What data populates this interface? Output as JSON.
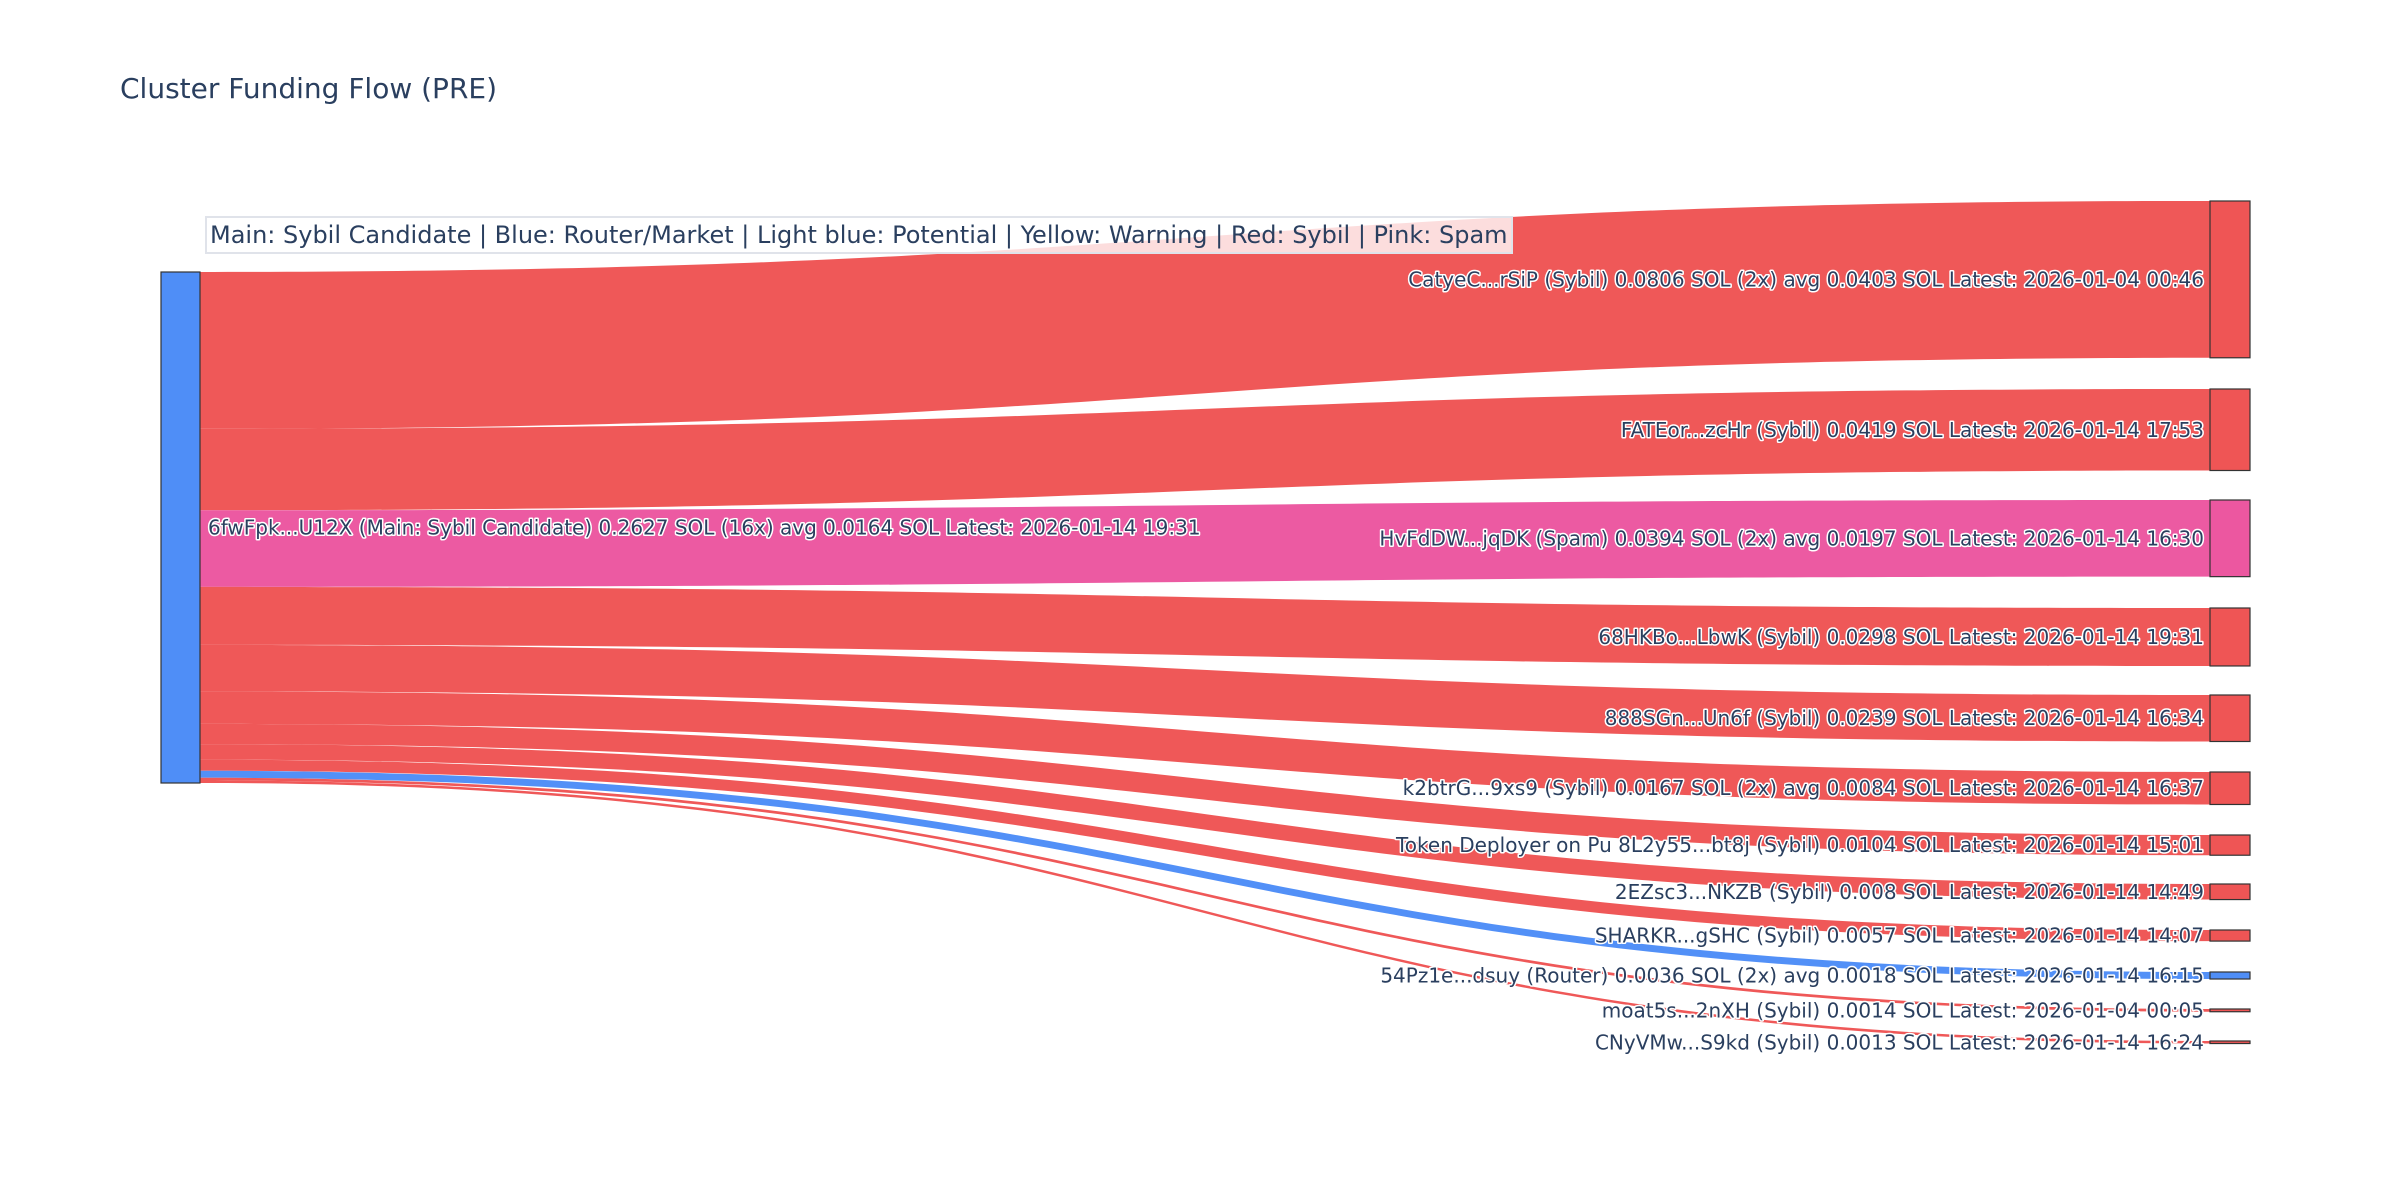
{
  "title": "Cluster Funding Flow (PRE)",
  "legend_note": "Main: Sybil Candidate  |  Blue: Router/Market | Light blue: Potential | Yellow: Warning | Red: Sybil | Pink: Spam",
  "colors": {
    "sybil": "#ef5555",
    "spam": "#ec57a0",
    "router": "#4f8ef7",
    "main": "#4f8ef7"
  },
  "chart_data": {
    "type": "sankey",
    "title": "Cluster Funding Flow (PRE)",
    "source": {
      "label": "6fwFpk...U12X (Main: Sybil Candidate) 0.2627 SOL (16x) avg 0.0164 SOL Latest: 2026-01-14 19:31",
      "value": 0.2627,
      "category": "main"
    },
    "targets": [
      {
        "label": "CatyeC...rSiP (Sybil) 0.0806 SOL (2x) avg 0.0403 SOL Latest: 2026-01-04 00:46",
        "value": 0.0806,
        "category": "sybil"
      },
      {
        "label": "FATEor...zcHr (Sybil) 0.0419 SOL Latest: 2026-01-14 17:53",
        "value": 0.0419,
        "category": "sybil"
      },
      {
        "label": "HvFdDW...jqDK (Spam) 0.0394 SOL (2x) avg 0.0197 SOL Latest: 2026-01-14 16:30",
        "value": 0.0394,
        "category": "spam"
      },
      {
        "label": "68HKBo...LbwK (Sybil) 0.0298 SOL Latest: 2026-01-14 19:31",
        "value": 0.0298,
        "category": "sybil"
      },
      {
        "label": "888SGn...Un6f (Sybil) 0.0239 SOL Latest: 2026-01-14 16:34",
        "value": 0.0239,
        "category": "sybil"
      },
      {
        "label": "k2btrG...9xs9 (Sybil) 0.0167 SOL (2x) avg 0.0084 SOL Latest: 2026-01-14 16:37",
        "value": 0.0167,
        "category": "sybil"
      },
      {
        "label": "Token Deployer on Pu 8L2y55...bt8j (Sybil) 0.0104 SOL Latest: 2026-01-14 15:01",
        "value": 0.0104,
        "category": "sybil"
      },
      {
        "label": "2EZsc3...NKZB (Sybil) 0.008 SOL Latest: 2026-01-14 14:49",
        "value": 0.008,
        "category": "sybil"
      },
      {
        "label": "SHARKR...gSHC (Sybil) 0.0057 SOL Latest: 2026-01-14 14:07",
        "value": 0.0057,
        "category": "sybil"
      },
      {
        "label": "54Pz1e...dsuy (Router) 0.0036 SOL (2x) avg 0.0018 SOL Latest: 2026-01-14 16:15",
        "value": 0.0036,
        "category": "router"
      },
      {
        "label": "moat5s...2nXH (Sybil) 0.0014 SOL Latest: 2026-01-04 00:05",
        "value": 0.0014,
        "category": "sybil"
      },
      {
        "label": "CNyVMw...S9kd (Sybil) 0.0013 SOL Latest: 2026-01-14 16:24",
        "value": 0.0013,
        "category": "sybil"
      }
    ]
  }
}
